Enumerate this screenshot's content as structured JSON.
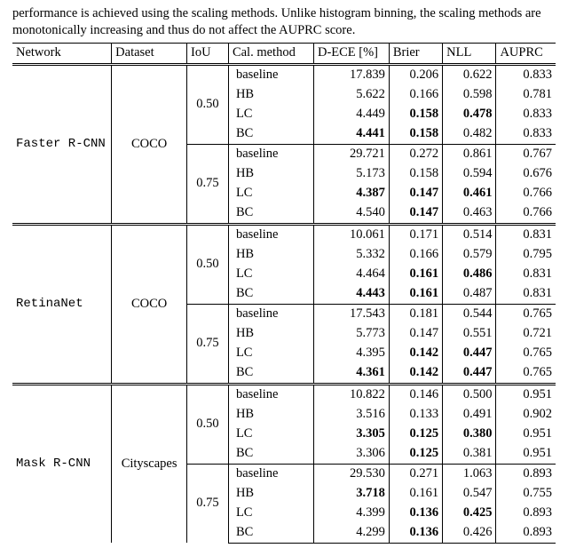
{
  "caption": "performance is achieved using the scaling methods. Unlike histogram binning, the scaling methods are monotonically increasing and thus do not affect the AUPRC score.",
  "columns": {
    "network": "Network",
    "dataset": "Dataset",
    "iou": "IoU",
    "method": "Cal. method",
    "dece": "D-ECE [%]",
    "brier": "Brier",
    "nll": "NLL",
    "auprc": "AUPRC"
  },
  "blocks": [
    {
      "network": "Faster R-CNN",
      "dataset": "COCO",
      "ious": [
        {
          "iou": "0.50",
          "rows": [
            {
              "method": "baseline",
              "dece": "17.839",
              "brier": "0.206",
              "nll": "0.622",
              "auprc": "0.833"
            },
            {
              "method": "HB",
              "dece": "5.622",
              "brier": "0.166",
              "nll": "0.598",
              "auprc": "0.781"
            },
            {
              "method": "LC",
              "dece": "4.449",
              "brier": "0.158",
              "nll": "0.478",
              "auprc": "0.833",
              "bold": {
                "brier": true,
                "nll": true
              }
            },
            {
              "method": "BC",
              "dece": "4.441",
              "brier": "0.158",
              "nll": "0.482",
              "auprc": "0.833",
              "bold": {
                "dece": true,
                "brier": true
              }
            }
          ]
        },
        {
          "iou": "0.75",
          "rows": [
            {
              "method": "baseline",
              "dece": "29.721",
              "brier": "0.272",
              "nll": "0.861",
              "auprc": "0.767"
            },
            {
              "method": "HB",
              "dece": "5.173",
              "brier": "0.158",
              "nll": "0.594",
              "auprc": "0.676"
            },
            {
              "method": "LC",
              "dece": "4.387",
              "brier": "0.147",
              "nll": "0.461",
              "auprc": "0.766",
              "bold": {
                "dece": true,
                "brier": true,
                "nll": true
              }
            },
            {
              "method": "BC",
              "dece": "4.540",
              "brier": "0.147",
              "nll": "0.463",
              "auprc": "0.766",
              "bold": {
                "brier": true
              }
            }
          ]
        }
      ]
    },
    {
      "network": "RetinaNet",
      "dataset": "COCO",
      "ious": [
        {
          "iou": "0.50",
          "rows": [
            {
              "method": "baseline",
              "dece": "10.061",
              "brier": "0.171",
              "nll": "0.514",
              "auprc": "0.831"
            },
            {
              "method": "HB",
              "dece": "5.332",
              "brier": "0.166",
              "nll": "0.579",
              "auprc": "0.795"
            },
            {
              "method": "LC",
              "dece": "4.464",
              "brier": "0.161",
              "nll": "0.486",
              "auprc": "0.831",
              "bold": {
                "brier": true,
                "nll": true
              }
            },
            {
              "method": "BC",
              "dece": "4.443",
              "brier": "0.161",
              "nll": "0.487",
              "auprc": "0.831",
              "bold": {
                "dece": true,
                "brier": true
              }
            }
          ]
        },
        {
          "iou": "0.75",
          "rows": [
            {
              "method": "baseline",
              "dece": "17.543",
              "brier": "0.181",
              "nll": "0.544",
              "auprc": "0.765"
            },
            {
              "method": "HB",
              "dece": "5.773",
              "brier": "0.147",
              "nll": "0.551",
              "auprc": "0.721"
            },
            {
              "method": "LC",
              "dece": "4.395",
              "brier": "0.142",
              "nll": "0.447",
              "auprc": "0.765",
              "bold": {
                "brier": true,
                "nll": true
              }
            },
            {
              "method": "BC",
              "dece": "4.361",
              "brier": "0.142",
              "nll": "0.447",
              "auprc": "0.765",
              "bold": {
                "dece": true,
                "brier": true,
                "nll": true
              }
            }
          ]
        }
      ]
    },
    {
      "network": "Mask R-CNN",
      "dataset": "Cityscapes",
      "ious": [
        {
          "iou": "0.50",
          "rows": [
            {
              "method": "baseline",
              "dece": "10.822",
              "brier": "0.146",
              "nll": "0.500",
              "auprc": "0.951"
            },
            {
              "method": "HB",
              "dece": "3.516",
              "brier": "0.133",
              "nll": "0.491",
              "auprc": "0.902"
            },
            {
              "method": "LC",
              "dece": "3.305",
              "brier": "0.125",
              "nll": "0.380",
              "auprc": "0.951",
              "bold": {
                "dece": true,
                "brier": true,
                "nll": true
              }
            },
            {
              "method": "BC",
              "dece": "3.306",
              "brier": "0.125",
              "nll": "0.381",
              "auprc": "0.951",
              "bold": {
                "brier": true
              }
            }
          ]
        },
        {
          "iou": "0.75",
          "rows": [
            {
              "method": "baseline",
              "dece": "29.530",
              "brier": "0.271",
              "nll": "1.063",
              "auprc": "0.893"
            },
            {
              "method": "HB",
              "dece": "3.718",
              "brier": "0.161",
              "nll": "0.547",
              "auprc": "0.755",
              "bold": {
                "dece": true
              }
            },
            {
              "method": "LC",
              "dece": "4.399",
              "brier": "0.136",
              "nll": "0.425",
              "auprc": "0.893",
              "bold": {
                "brier": true,
                "nll": true
              }
            },
            {
              "method": "BC",
              "dece": "4.299",
              "brier": "0.136",
              "nll": "0.426",
              "auprc": "0.893",
              "bold": {
                "brier": true
              }
            }
          ]
        }
      ]
    }
  ]
}
